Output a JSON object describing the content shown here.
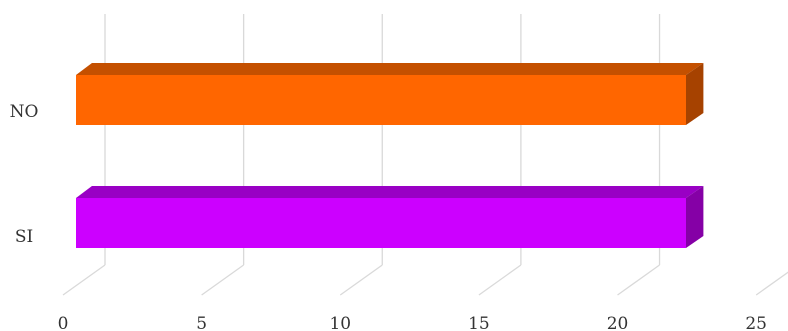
{
  "chart_data": {
    "type": "bar",
    "orientation": "horizontal",
    "style": "3d",
    "categories": [
      "NO",
      "SI"
    ],
    "values": [
      22,
      22
    ],
    "colors": [
      "#FF6600",
      "#CC00FF"
    ],
    "side_colors": [
      "#A64200",
      "#8500A6"
    ],
    "top_colors": [
      "#C45000",
      "#9900C4"
    ],
    "xlim": [
      0,
      25
    ],
    "xticks": [
      "0",
      "5",
      "10",
      "15",
      "20",
      "25"
    ],
    "grid": true,
    "title": "",
    "xlabel": "",
    "ylabel": ""
  }
}
